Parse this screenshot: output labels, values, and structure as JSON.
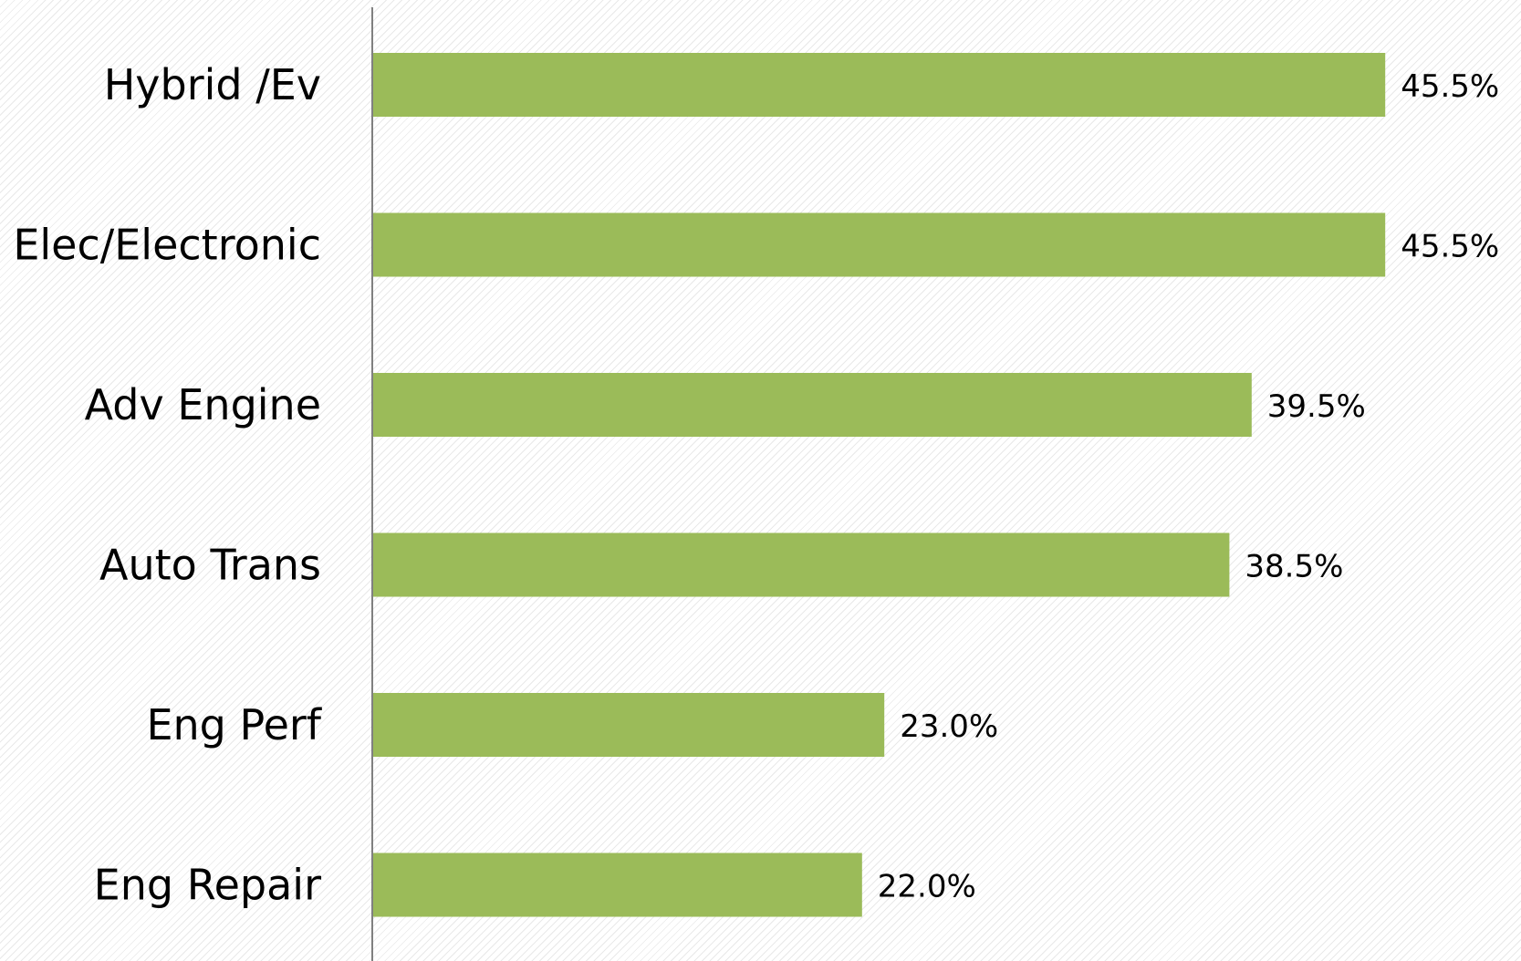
{
  "chart_data": {
    "type": "bar",
    "orientation": "horizontal",
    "categories": [
      "Hybrid /Ev",
      "Elec/Electronic",
      "Adv Engine",
      "Auto Trans",
      "Eng Perf",
      "Eng Repair"
    ],
    "values": [
      45.5,
      45.5,
      39.5,
      38.5,
      23.0,
      22.0
    ],
    "value_labels": [
      "45.5%",
      "45.5%",
      "39.5%",
      "38.5%",
      "23.0%",
      "22.0%"
    ],
    "title": "",
    "xlabel": "",
    "ylabel": "",
    "xlim": [
      0,
      50
    ],
    "grid": false,
    "legend": "none",
    "bar_color": "#9bbb59",
    "axis_color": "#808080"
  }
}
